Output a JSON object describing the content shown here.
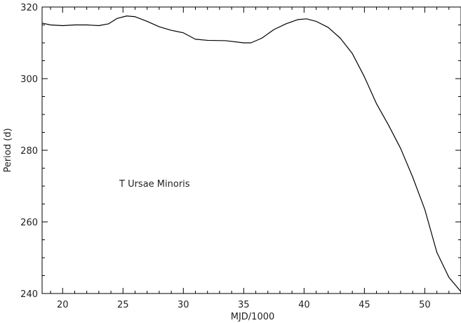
{
  "chart_data": {
    "type": "line",
    "title": "",
    "xlabel": "MJD/1000",
    "ylabel": "Period (d)",
    "xlim": [
      18.3,
      53.0
    ],
    "ylim": [
      240,
      320
    ],
    "x_major_ticks": [
      20,
      25,
      30,
      35,
      40,
      45,
      50
    ],
    "x_tick_labels": [
      "20",
      "25",
      "30",
      "35",
      "40",
      "45",
      "50"
    ],
    "y_major_ticks": [
      240,
      260,
      280,
      300,
      320
    ],
    "y_tick_labels": [
      "240",
      "260",
      "280",
      "300",
      "320"
    ],
    "grid": false,
    "annotation": {
      "text": "T Ursae Minoris"
    },
    "series": [
      {
        "color": "#000000",
        "x": [
          18.3,
          19.0,
          20.0,
          21.0,
          22.0,
          23.0,
          23.8,
          24.5,
          25.3,
          26.0,
          27.0,
          28.0,
          29.0,
          30.0,
          31.0,
          32.0,
          33.5,
          35.0,
          35.6,
          36.5,
          37.5,
          38.5,
          39.5,
          40.2,
          41.0,
          42.0,
          43.0,
          44.0,
          45.0,
          46.0,
          47.0,
          48.0,
          49.0,
          50.0,
          51.0,
          52.0,
          53.0
        ],
        "y": [
          315.5,
          315.0,
          314.8,
          315.0,
          315.0,
          314.8,
          315.3,
          316.8,
          317.5,
          317.3,
          316.0,
          314.5,
          313.5,
          312.8,
          311.0,
          310.7,
          310.6,
          310.0,
          310.0,
          311.3,
          313.7,
          315.3,
          316.5,
          316.7,
          316.0,
          314.3,
          311.3,
          307.0,
          300.5,
          293.0,
          287.0,
          280.5,
          272.5,
          263.5,
          251.5,
          244.5,
          240.5
        ]
      }
    ]
  }
}
